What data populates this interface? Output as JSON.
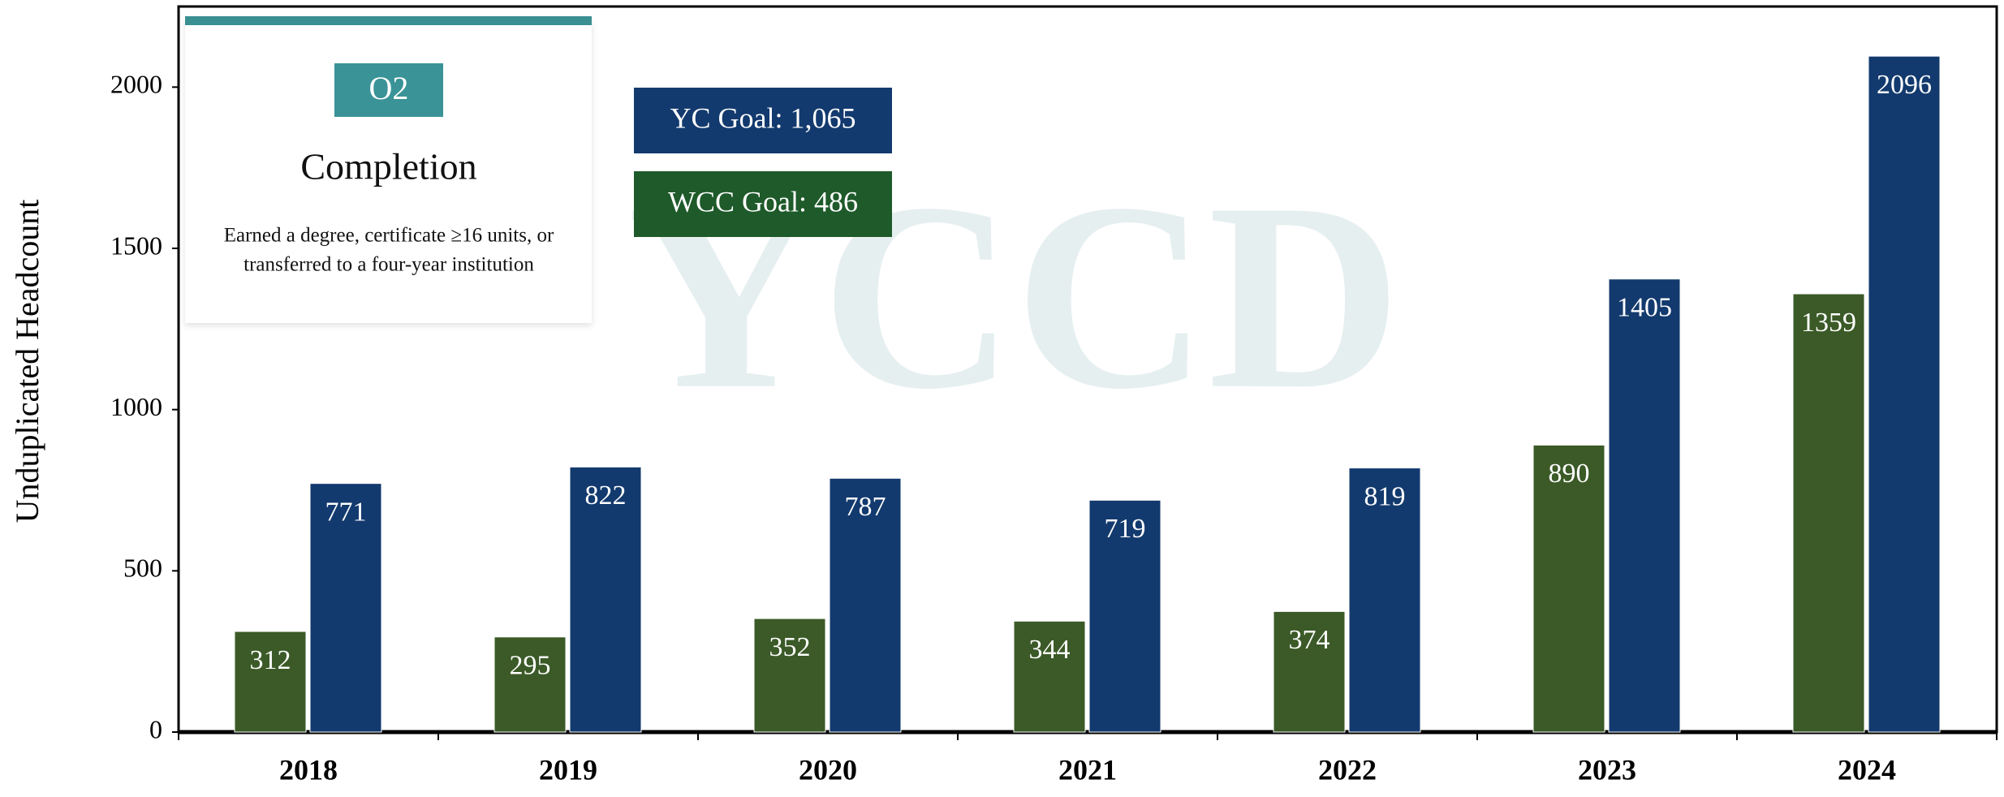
{
  "chart_data": {
    "type": "bar",
    "y_label": "Unduplicated Headcount",
    "categories": [
      "2018",
      "2019",
      "2020",
      "2021",
      "2022",
      "2023",
      "2024"
    ],
    "series": [
      {
        "color": "#3b5a27",
        "values": [
          312,
          295,
          352,
          344,
          374,
          890,
          1359
        ]
      },
      {
        "color": "#133a6e",
        "values": [
          771,
          822,
          787,
          719,
          819,
          1405,
          2096
        ]
      }
    ],
    "ylim": [
      0,
      2250
    ],
    "yticks": [
      0,
      500,
      1000,
      1500,
      2000
    ],
    "grid": false,
    "watermark": "YCCD",
    "card": {
      "badge": "O2",
      "title": "Completion",
      "description": [
        "Earned a degree, certificate ≥16 units, or",
        "transferred to a four-year institution"
      ]
    },
    "goals": [
      {
        "label": "YC Goal: 1,065",
        "color": "#133a6e"
      },
      {
        "label": "WCC Goal: 486",
        "color": "#1e5a2a"
      }
    ]
  }
}
